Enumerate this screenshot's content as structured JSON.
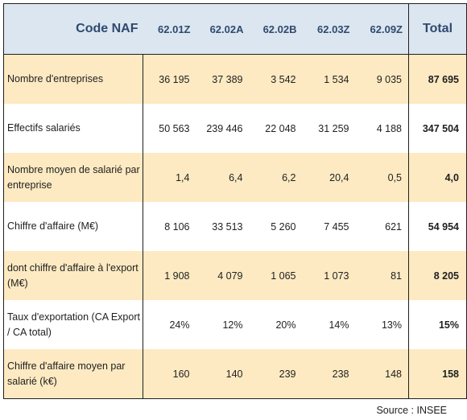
{
  "header": {
    "code_label": "Code NAF",
    "codes": [
      "62.01Z",
      "62.02A",
      "62.02B",
      "62.03Z",
      "62.09Z"
    ],
    "total_label": "Total"
  },
  "rows": [
    {
      "label": "Nombre d'entreprises",
      "values": [
        "36 195",
        "37 389",
        "3 542",
        "1 534",
        "9 035"
      ],
      "total": "87 695"
    },
    {
      "label": "Effectifs salariés",
      "values": [
        "50 563",
        "239 446",
        "22 048",
        "31 259",
        "4 188"
      ],
      "total": "347 504"
    },
    {
      "label": "Nombre moyen de salarié par entreprise",
      "values": [
        "1,4",
        "6,4",
        "6,2",
        "20,4",
        "0,5"
      ],
      "total": "4,0"
    },
    {
      "label": "Chiffre d'affaire (M€)",
      "values": [
        "8 106",
        "33 513",
        "5 260",
        "7 455",
        "621"
      ],
      "total": "54 954"
    },
    {
      "label": "dont chiffre d'affaire à l'export (M€)",
      "values": [
        "1 908",
        "4 079",
        "1 065",
        "1 073",
        "81"
      ],
      "total": "8 205"
    },
    {
      "label": "Taux d'exportation (CA Export / CA total)",
      "values": [
        "24%",
        "12%",
        "20%",
        "14%",
        "13%"
      ],
      "total": "15%"
    },
    {
      "label": "Chiffre d'affaire moyen par salarié (k€)",
      "values": [
        "160",
        "140",
        "239",
        "238",
        "148"
      ],
      "total": "158"
    }
  ],
  "source": "Source : INSEE",
  "colors": {
    "header_bg": "#dce6f1",
    "header_text": "#2f4a6d",
    "shaded_row_bg": "#fdeac2"
  }
}
